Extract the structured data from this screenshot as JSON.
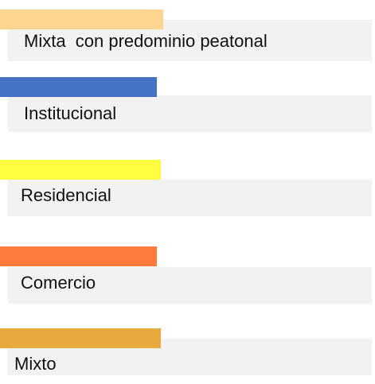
{
  "legend": {
    "items": [
      {
        "label": "Mixta  con predominio peatonal",
        "color": "#fdd58e"
      },
      {
        "label": "Institucional",
        "color": "#4472c4"
      },
      {
        "label": "Residencial",
        "color": "#ffff40"
      },
      {
        "label": "Comercio",
        "color": "#ff7b3c"
      },
      {
        "label": "Mixto",
        "color": "#e8a93e"
      }
    ]
  }
}
